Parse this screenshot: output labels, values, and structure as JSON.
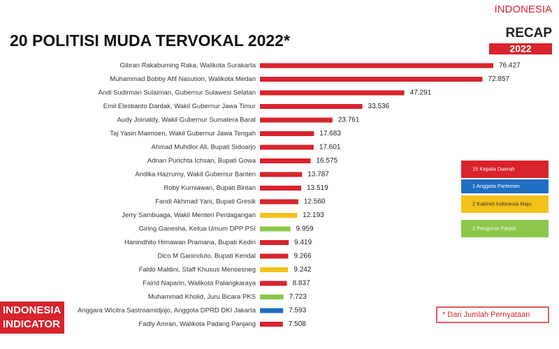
{
  "brand": {
    "top_line1": "INDONESIA",
    "top_line2": "RECAP",
    "top_line3": "2022",
    "bottom_line1": "INDONESIA",
    "bottom_line2": "INDICATOR"
  },
  "chart_data": {
    "type": "bar",
    "orientation": "horizontal",
    "title": "20 POLITISI MUDA TERVOKAL 2022*",
    "categories": [
      "Gibran Rakabuming Raka, Walikota Surakarta",
      "Muhammad Bobby Afif Nasution, Walikota Medan",
      "Andi Sudirman Sulaiman, Gubernur Sulawesi Selatan",
      "Emil Elestianto Dardak, Wakil Gubernur Jawa Timur",
      "Audy Joinaldy, Wakil Gubernur Sumatera Barat",
      "Taj Yasin Maimoen, Wakil Gubernur Jawa Tengah",
      "Ahmad Muhdlor Ali, Bupati Sidoarjo",
      "Adnan Purichta Ichsan, Bupati Gowa",
      "Andika Hazrumy, Wakil Gubernur Banten",
      "Roby Kurniawan, Bupati Bintan",
      "Fandi Akhmad Yani, Bupati Gresik",
      "Jerry Sambuaga, Wakil Menteri Perdagangan",
      "Giring Ganesha, Ketua Umum DPP PSI",
      "Hanindhito Himawan Pramana, Bupati Kediri",
      "Dico M Ganinduto, Bupati Kendal",
      "Faldo Maldini, Staff Khusus Mensesneg",
      "Fairid Naparin, Walikota Palangkaraya",
      "Muhammad Kholid, Juru Bicara PKS",
      "Anggara Wicitra Sastroamidjojo, Anggota DPRD DKI Jakarta",
      "Fadly Amran, Walikota Padang Panjang"
    ],
    "values": [
      76427,
      72857,
      47291,
      33536,
      23761,
      17683,
      17601,
      16575,
      13787,
      13519,
      12560,
      12193,
      9959,
      9419,
      9266,
      9242,
      8837,
      7723,
      7593,
      7508
    ],
    "value_labels": [
      "76.427",
      "72.857",
      "47.291",
      "33.536",
      "23.761",
      "17.683",
      "17.601",
      "16.575",
      "13.787",
      "13.519",
      "12.560",
      "12.193",
      "9.959",
      "9.419",
      "9.266",
      "9.242",
      "8.837",
      "7.723",
      "7.593",
      "7.508"
    ],
    "colors": [
      "#d9232d",
      "#d9232d",
      "#d9232d",
      "#d9232d",
      "#d9232d",
      "#d9232d",
      "#d9232d",
      "#d9232d",
      "#d9232d",
      "#d9232d",
      "#d9232d",
      "#f2c21b",
      "#8cc84b",
      "#d9232d",
      "#d9232d",
      "#f2c21b",
      "#d9232d",
      "#8cc84b",
      "#1f6fc0",
      "#d9232d"
    ],
    "legend": [
      {
        "name": "15 Kepala Daerah",
        "color": "#d9232d"
      },
      {
        "name": "1 Anggota Parlemen",
        "color": "#1f6fc0"
      },
      {
        "name": "2 Kabinet Indonesia Maju",
        "color": "#f2c21b"
      },
      {
        "name": "2 Pengurus Parpol",
        "color": "#8cc84b"
      }
    ],
    "note": "* Dari Jumlah Pernyataan"
  }
}
